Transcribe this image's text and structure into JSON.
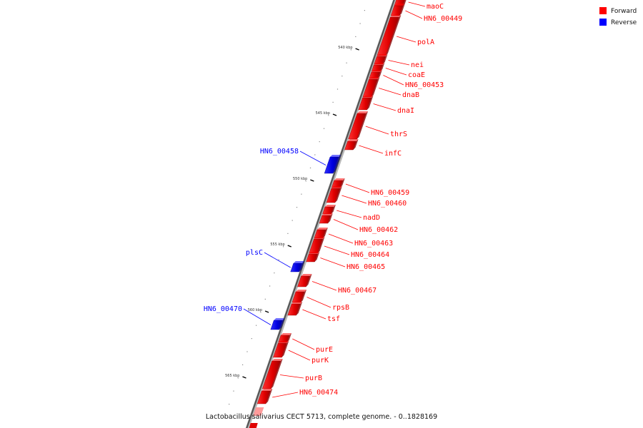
{
  "caption": "Lactobacillus salivarius CECT 5713, complete genome. - 0..1828169",
  "legend": [
    {
      "label": "Forward",
      "color": "#ff0000"
    },
    {
      "label": "Reverse",
      "color": "#0000ff"
    }
  ],
  "ticks": [
    "540 kbp",
    "545 kbp",
    "550 kbp",
    "555 kbp",
    "560 kbp",
    "565 kbp"
  ],
  "genes": [
    {
      "name": "maoC",
      "strand": "forward"
    },
    {
      "name": "HN6_00449",
      "strand": "forward"
    },
    {
      "name": "polA",
      "strand": "forward"
    },
    {
      "name": "nei",
      "strand": "forward"
    },
    {
      "name": "coaE",
      "strand": "forward"
    },
    {
      "name": "HN6_00453",
      "strand": "forward"
    },
    {
      "name": "dnaB",
      "strand": "forward"
    },
    {
      "name": "dnaI",
      "strand": "forward"
    },
    {
      "name": "thrS",
      "strand": "forward"
    },
    {
      "name": "infC",
      "strand": "forward"
    },
    {
      "name": "HN6_00458",
      "strand": "reverse"
    },
    {
      "name": "HN6_00459",
      "strand": "forward"
    },
    {
      "name": "HN6_00460",
      "strand": "forward"
    },
    {
      "name": "nadD",
      "strand": "forward"
    },
    {
      "name": "HN6_00462",
      "strand": "forward"
    },
    {
      "name": "HN6_00463",
      "strand": "forward"
    },
    {
      "name": "HN6_00464",
      "strand": "forward"
    },
    {
      "name": "HN6_00465",
      "strand": "forward"
    },
    {
      "name": "plsC",
      "strand": "reverse"
    },
    {
      "name": "HN6_00467",
      "strand": "forward"
    },
    {
      "name": "rpsB",
      "strand": "forward"
    },
    {
      "name": "tsf",
      "strand": "forward"
    },
    {
      "name": "HN6_00470",
      "strand": "reverse"
    },
    {
      "name": "purE",
      "strand": "forward"
    },
    {
      "name": "purK",
      "strand": "forward"
    },
    {
      "name": "purB",
      "strand": "forward"
    },
    {
      "name": "HN6_00474",
      "strand": "forward"
    }
  ]
}
